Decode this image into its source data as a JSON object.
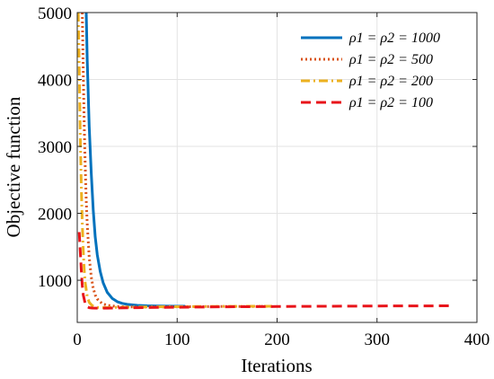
{
  "chart_data": {
    "type": "line",
    "xlabel": "Iterations",
    "ylabel": "Objective function",
    "xlim": [
      0,
      400
    ],
    "ylim": [
      370,
      5000
    ],
    "xticks": [
      0,
      100,
      200,
      300,
      400
    ],
    "yticks": [
      1000,
      2000,
      3000,
      4000,
      5000
    ],
    "grid": true,
    "legend_position": "top-right",
    "series": [
      {
        "name": "ρ1 = ρ2 = 1000",
        "color": "#0072BD",
        "style": "solid",
        "x": [
          9,
          10,
          12,
          14,
          16,
          18,
          20,
          23,
          26,
          30,
          35,
          40,
          45,
          50,
          60,
          70,
          80,
          90,
          100,
          108
        ],
        "y": [
          5000,
          4300,
          3300,
          2600,
          2050,
          1650,
          1380,
          1130,
          960,
          820,
          730,
          680,
          655,
          640,
          625,
          618,
          615,
          613,
          612,
          611
        ]
      },
      {
        "name": "ρ1 = ρ2 = 500",
        "color": "#D95319",
        "style": "dotted",
        "x": [
          5,
          6,
          7,
          8,
          9,
          10,
          12,
          14,
          16,
          18,
          20,
          25,
          30,
          40,
          50,
          60,
          80,
          100,
          120,
          140,
          160,
          180,
          195
        ],
        "y": [
          5000,
          4100,
          3300,
          2700,
          2200,
          1850,
          1350,
          1050,
          880,
          780,
          720,
          650,
          625,
          608,
          602,
          600,
          601,
          603,
          605,
          607,
          608,
          609,
          610
        ]
      },
      {
        "name": "ρ1 = ρ2 = 200",
        "color": "#EDB120",
        "style": "dashdot",
        "x": [
          1,
          2,
          3,
          4,
          5,
          6,
          7,
          8,
          10,
          12,
          15,
          20,
          25,
          30,
          40,
          50,
          60,
          80,
          100,
          120,
          140,
          160,
          180,
          195
        ],
        "y": [
          5000,
          4200,
          3200,
          2400,
          1850,
          1450,
          1150,
          960,
          760,
          670,
          620,
          595,
          590,
          592,
          595,
          598,
          600,
          603,
          605,
          607,
          609,
          610,
          611,
          612
        ]
      },
      {
        "name": "ρ1 = ρ2 = 100",
        "color": "#E8141A",
        "style": "dashed",
        "x": [
          2,
          3,
          4,
          5,
          6,
          8,
          10,
          12,
          15,
          20,
          25,
          30,
          40,
          50,
          60,
          80,
          100,
          150,
          200,
          250,
          300,
          350,
          375
        ],
        "y": [
          1720,
          1450,
          1150,
          920,
          780,
          650,
          605,
          590,
          585,
          583,
          583,
          584,
          586,
          588,
          590,
          594,
          597,
          603,
          608,
          612,
          615,
          617,
          618
        ]
      }
    ]
  }
}
